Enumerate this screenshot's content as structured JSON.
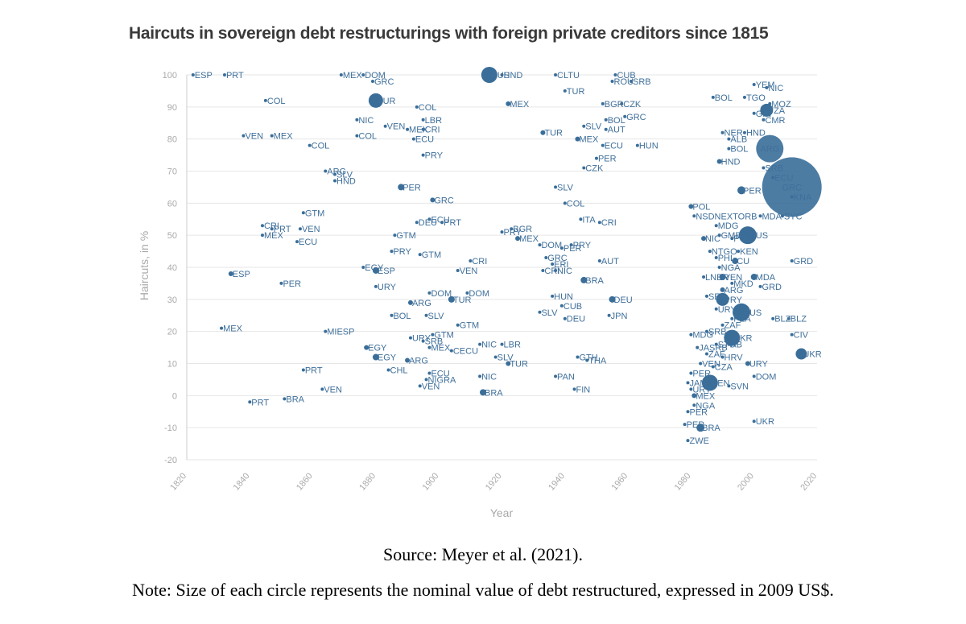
{
  "title": "Haircuts in sovereign debt restructurings with foreign private creditors since 1815",
  "source": "Source: Meyer et al. (2021).",
  "note": "Note: Size of each circle represents the nominal value of debt restructured, expressed in 2009 US$.",
  "colors": {
    "marker": "#3a6e99",
    "label": "#3f6f9a",
    "grid": "#e6e6e6",
    "axis_text": "#aaaaaa"
  },
  "chart_data": {
    "type": "scatter",
    "title": "Haircuts in sovereign debt restructurings with foreign private creditors since 1815",
    "xlabel": "Year",
    "ylabel": "Haircuts, in %",
    "xlim": [
      1820,
      2020
    ],
    "ylim": [
      -20,
      100
    ],
    "x_ticks": [
      1820,
      1840,
      1860,
      1880,
      1900,
      1920,
      1940,
      1960,
      1980,
      2000,
      2020
    ],
    "y_ticks": [
      100,
      90,
      80,
      70,
      60,
      50,
      40,
      30,
      20,
      10,
      0,
      -10,
      -20
    ],
    "grid": "horizontal",
    "marker_size_meaning": "nominal value of debt restructured (2009 US$)",
    "points": [
      {
        "label": "ESP",
        "x": 1822,
        "y": 100,
        "r": 2
      },
      {
        "label": "PRT",
        "x": 1832,
        "y": 100,
        "r": 2
      },
      {
        "label": "COL",
        "x": 1845,
        "y": 92,
        "r": 2
      },
      {
        "label": "VEN",
        "x": 1838,
        "y": 81,
        "r": 2
      },
      {
        "label": "MEX",
        "x": 1847,
        "y": 81,
        "r": 2
      },
      {
        "label": "CRI",
        "x": 1844,
        "y": 53,
        "r": 2
      },
      {
        "label": "PRT",
        "x": 1847,
        "y": 52,
        "r": 2
      },
      {
        "label": "MEX",
        "x": 1844,
        "y": 50,
        "r": 2
      },
      {
        "label": "ESP",
        "x": 1834,
        "y": 38,
        "r": 3
      },
      {
        "label": "PER",
        "x": 1850,
        "y": 35,
        "r": 2
      },
      {
        "label": "MEX",
        "x": 1831,
        "y": 21,
        "r": 2
      },
      {
        "label": "PRT",
        "x": 1840,
        "y": -2,
        "r": 2
      },
      {
        "label": "BRA",
        "x": 1851,
        "y": -1,
        "r": 2
      },
      {
        "label": "MEX",
        "x": 1869,
        "y": 100,
        "r": 2
      },
      {
        "label": "DOM",
        "x": 1876,
        "y": 100,
        "r": 2
      },
      {
        "label": "GRC",
        "x": 1879,
        "y": 98,
        "r": 2
      },
      {
        "label": "TUR",
        "x": 1880,
        "y": 92,
        "r": 9
      },
      {
        "label": "NIC",
        "x": 1874,
        "y": 86,
        "r": 2
      },
      {
        "label": "VEN",
        "x": 1883,
        "y": 84,
        "r": 2
      },
      {
        "label": "MEX",
        "x": 1890,
        "y": 83,
        "r": 2
      },
      {
        "label": "COL",
        "x": 1874,
        "y": 81,
        "r": 2
      },
      {
        "label": "ECU",
        "x": 1892,
        "y": 80,
        "r": 2
      },
      {
        "label": "COL",
        "x": 1859,
        "y": 78,
        "r": 2
      },
      {
        "label": "ARG",
        "x": 1864,
        "y": 70,
        "r": 2
      },
      {
        "label": "SLV",
        "x": 1867,
        "y": 69,
        "r": 2
      },
      {
        "label": "HND",
        "x": 1867,
        "y": 67,
        "r": 2
      },
      {
        "label": "GTM",
        "x": 1857,
        "y": 57,
        "r": 2
      },
      {
        "label": "VEN",
        "x": 1856,
        "y": 52,
        "r": 2
      },
      {
        "label": "ECU",
        "x": 1855,
        "y": 48,
        "r": 2
      },
      {
        "label": "EGY",
        "x": 1876,
        "y": 40,
        "r": 2
      },
      {
        "label": "ESP",
        "x": 1880,
        "y": 39,
        "r": 4
      },
      {
        "label": "URY",
        "x": 1880,
        "y": 34,
        "r": 2
      },
      {
        "label": "MIESP",
        "x": 1864,
        "y": 20,
        "r": 2
      },
      {
        "label": "EGY",
        "x": 1877,
        "y": 15,
        "r": 3
      },
      {
        "label": "EGY",
        "x": 1880,
        "y": 12,
        "r": 4
      },
      {
        "label": "PRT",
        "x": 1857,
        "y": 8,
        "r": 2
      },
      {
        "label": "VEN",
        "x": 1863,
        "y": 2,
        "r": 2
      },
      {
        "label": "CHL",
        "x": 1884,
        "y": 8,
        "r": 2
      },
      {
        "label": "COL",
        "x": 1893,
        "y": 90,
        "r": 2
      },
      {
        "label": "LBR",
        "x": 1895,
        "y": 86,
        "r": 2
      },
      {
        "label": "CRI",
        "x": 1895,
        "y": 83,
        "r": 2
      },
      {
        "label": "PRY",
        "x": 1895,
        "y": 75,
        "r": 2
      },
      {
        "label": "PER",
        "x": 1888,
        "y": 65,
        "r": 4
      },
      {
        "label": "GRC",
        "x": 1898,
        "y": 61,
        "r": 3
      },
      {
        "label": "DEU",
        "x": 1893,
        "y": 54,
        "r": 2
      },
      {
        "label": "ECU",
        "x": 1897,
        "y": 55,
        "r": 2
      },
      {
        "label": "PRT",
        "x": 1901,
        "y": 54,
        "r": 2
      },
      {
        "label": "GTM",
        "x": 1886,
        "y": 50,
        "r": 2
      },
      {
        "label": "PRY",
        "x": 1885,
        "y": 45,
        "r": 2
      },
      {
        "label": "GTM",
        "x": 1894,
        "y": 44,
        "r": 2
      },
      {
        "label": "CRI",
        "x": 1910,
        "y": 42,
        "r": 2
      },
      {
        "label": "VEN",
        "x": 1906,
        "y": 39,
        "r": 2
      },
      {
        "label": "DOM",
        "x": 1897,
        "y": 32,
        "r": 2
      },
      {
        "label": "DOM",
        "x": 1909,
        "y": 32,
        "r": 2
      },
      {
        "label": "TUR",
        "x": 1904,
        "y": 30,
        "r": 4
      },
      {
        "label": "ARG",
        "x": 1891,
        "y": 29,
        "r": 3
      },
      {
        "label": "BOL",
        "x": 1885,
        "y": 25,
        "r": 2
      },
      {
        "label": "SLV",
        "x": 1896,
        "y": 25,
        "r": 2
      },
      {
        "label": "GTM",
        "x": 1906,
        "y": 22,
        "r": 2
      },
      {
        "label": "URY",
        "x": 1891,
        "y": 18,
        "r": 2
      },
      {
        "label": "SRB",
        "x": 1895,
        "y": 17,
        "r": 2
      },
      {
        "label": "GTM",
        "x": 1898,
        "y": 19,
        "r": 2
      },
      {
        "label": "MEX",
        "x": 1897,
        "y": 15,
        "r": 2
      },
      {
        "label": "CECU",
        "x": 1904,
        "y": 14,
        "r": 2
      },
      {
        "label": "NIC",
        "x": 1913,
        "y": 16,
        "r": 2
      },
      {
        "label": "LBR",
        "x": 1920,
        "y": 16,
        "r": 2
      },
      {
        "label": "ARG",
        "x": 1890,
        "y": 11,
        "r": 3
      },
      {
        "label": "SLV",
        "x": 1918,
        "y": 12,
        "r": 2
      },
      {
        "label": "TUR",
        "x": 1922,
        "y": 10,
        "r": 3
      },
      {
        "label": "ECU",
        "x": 1897,
        "y": 7,
        "r": 2
      },
      {
        "label": "NIC",
        "x": 1913,
        "y": 6,
        "r": 2
      },
      {
        "label": "NIGRA",
        "x": 1896,
        "y": 5,
        "r": 2
      },
      {
        "label": "VEN",
        "x": 1894,
        "y": 3,
        "r": 2
      },
      {
        "label": "BRA",
        "x": 1914,
        "y": 1,
        "r": 4
      },
      {
        "label": "RUS",
        "x": 1916,
        "y": 100,
        "r": 10
      },
      {
        "label": "HND",
        "x": 1920,
        "y": 100,
        "r": 2
      },
      {
        "label": "MEX",
        "x": 1922,
        "y": 91,
        "r": 3
      },
      {
        "label": "PRY",
        "x": 1920,
        "y": 51,
        "r": 2
      },
      {
        "label": "BGR",
        "x": 1923,
        "y": 52,
        "r": 2
      },
      {
        "label": "MEX",
        "x": 1925,
        "y": 49,
        "r": 3
      },
      {
        "label": "CLTU",
        "x": 1937,
        "y": 100,
        "r": 2
      },
      {
        "label": "TUR",
        "x": 1940,
        "y": 95,
        "r": 2
      },
      {
        "label": "CUB",
        "x": 1956,
        "y": 100,
        "r": 2
      },
      {
        "label": "ROU",
        "x": 1955,
        "y": 98,
        "r": 2
      },
      {
        "label": "SRB",
        "x": 1961,
        "y": 98,
        "r": 2
      },
      {
        "label": "BGR",
        "x": 1952,
        "y": 91,
        "r": 2
      },
      {
        "label": "CZK",
        "x": 1958,
        "y": 91,
        "r": 2
      },
      {
        "label": "BOL",
        "x": 1953,
        "y": 86,
        "r": 2
      },
      {
        "label": "GRC",
        "x": 1959,
        "y": 87,
        "r": 2
      },
      {
        "label": "AUT",
        "x": 1953,
        "y": 83,
        "r": 2
      },
      {
        "label": "SLV",
        "x": 1946,
        "y": 84,
        "r": 2
      },
      {
        "label": "TUR",
        "x": 1933,
        "y": 82,
        "r": 3
      },
      {
        "label": "MEX",
        "x": 1944,
        "y": 80,
        "r": 3
      },
      {
        "label": "ECU",
        "x": 1952,
        "y": 78,
        "r": 2
      },
      {
        "label": "HUN",
        "x": 1963,
        "y": 78,
        "r": 2
      },
      {
        "label": "PER",
        "x": 1950,
        "y": 74,
        "r": 2
      },
      {
        "label": "CZK",
        "x": 1946,
        "y": 71,
        "r": 2
      },
      {
        "label": "SLV",
        "x": 1937,
        "y": 65,
        "r": 2
      },
      {
        "label": "COL",
        "x": 1940,
        "y": 60,
        "r": 2
      },
      {
        "label": "ITA",
        "x": 1945,
        "y": 55,
        "r": 2
      },
      {
        "label": "CRI",
        "x": 1951,
        "y": 54,
        "r": 2
      },
      {
        "label": "DOM",
        "x": 1932,
        "y": 47,
        "r": 2
      },
      {
        "label": "PER",
        "x": 1939,
        "y": 46,
        "r": 2
      },
      {
        "label": "PRY",
        "x": 1942,
        "y": 47,
        "r": 2
      },
      {
        "label": "GRC",
        "x": 1934,
        "y": 43,
        "r": 2
      },
      {
        "label": "ERI",
        "x": 1936,
        "y": 41,
        "r": 2
      },
      {
        "label": "CRI",
        "x": 1933,
        "y": 39,
        "r": 2
      },
      {
        "label": "NIC",
        "x": 1937,
        "y": 39,
        "r": 2
      },
      {
        "label": "AUT",
        "x": 1951,
        "y": 42,
        "r": 2
      },
      {
        "label": "BRA",
        "x": 1946,
        "y": 36,
        "r": 4
      },
      {
        "label": "HUN",
        "x": 1936,
        "y": 31,
        "r": 2
      },
      {
        "label": "CUB",
        "x": 1939,
        "y": 28,
        "r": 2
      },
      {
        "label": "SLV",
        "x": 1932,
        "y": 26,
        "r": 2
      },
      {
        "label": "DEU",
        "x": 1940,
        "y": 24,
        "r": 2
      },
      {
        "label": "DEU",
        "x": 1955,
        "y": 30,
        "r": 4
      },
      {
        "label": "JPN",
        "x": 1954,
        "y": 25,
        "r": 2
      },
      {
        "label": "GTH",
        "x": 1944,
        "y": 12,
        "r": 2
      },
      {
        "label": "THA",
        "x": 1947,
        "y": 11,
        "r": 2
      },
      {
        "label": "PAN",
        "x": 1937,
        "y": 6,
        "r": 2
      },
      {
        "label": "FIN",
        "x": 1943,
        "y": 2,
        "r": 2
      },
      {
        "label": "POL",
        "x": 1980,
        "y": 59,
        "r": 3
      },
      {
        "label": "NSDNEXTORB",
        "x": 1981,
        "y": 56,
        "r": 2
      },
      {
        "label": "MDG",
        "x": 1988,
        "y": 53,
        "r": 2
      },
      {
        "label": "NIC",
        "x": 1984,
        "y": 49,
        "r": 3
      },
      {
        "label": "GMB",
        "x": 1989,
        "y": 50,
        "r": 2
      },
      {
        "label": "POL",
        "x": 1993,
        "y": 49,
        "r": 2
      },
      {
        "label": "RUS",
        "x": 1998,
        "y": 50,
        "r": 11
      },
      {
        "label": "NTGO",
        "x": 1986,
        "y": 45,
        "r": 2
      },
      {
        "label": "KEN",
        "x": 1995,
        "y": 45,
        "r": 2
      },
      {
        "label": "PHL",
        "x": 1988,
        "y": 43,
        "r": 2
      },
      {
        "label": "CU",
        "x": 1994,
        "y": 42,
        "r": 4
      },
      {
        "label": "NGA",
        "x": 1989,
        "y": 40,
        "r": 2
      },
      {
        "label": "LNER",
        "x": 1984,
        "y": 37,
        "r": 2
      },
      {
        "label": "VEN",
        "x": 1990,
        "y": 37,
        "r": 4
      },
      {
        "label": "MDA",
        "x": 2000,
        "y": 37,
        "r": 4
      },
      {
        "label": "MKD",
        "x": 1993,
        "y": 35,
        "r": 2
      },
      {
        "label": "GRD",
        "x": 2002,
        "y": 34,
        "r": 2
      },
      {
        "label": "ARG",
        "x": 1990,
        "y": 33,
        "r": 3
      },
      {
        "label": "SEN",
        "x": 1985,
        "y": 31,
        "r": 2
      },
      {
        "label": "PRY",
        "x": 1990,
        "y": 30,
        "r": 8
      },
      {
        "label": "URY",
        "x": 1988,
        "y": 27,
        "r": 2
      },
      {
        "label": "RUS",
        "x": 1996,
        "y": 26,
        "r": 11
      },
      {
        "label": "PZA",
        "x": 1993,
        "y": 24,
        "r": 2
      },
      {
        "label": "ZAF",
        "x": 1990,
        "y": 22,
        "r": 2
      },
      {
        "label": "SRB",
        "x": 1985,
        "y": 20,
        "r": 2
      },
      {
        "label": "MDG",
        "x": 1980,
        "y": 19,
        "r": 2
      },
      {
        "label": "UKR",
        "x": 1993,
        "y": 18,
        "r": 10
      },
      {
        "label": "STO",
        "x": 1988,
        "y": 16,
        "r": 2
      },
      {
        "label": "AB",
        "x": 1992,
        "y": 16,
        "r": 2
      },
      {
        "label": "JASRB",
        "x": 1982,
        "y": 15,
        "r": 2
      },
      {
        "label": "ZAF",
        "x": 1985,
        "y": 13,
        "r": 2
      },
      {
        "label": "HRV",
        "x": 1990,
        "y": 12,
        "r": 2
      },
      {
        "label": "URY",
        "x": 1998,
        "y": 10,
        "r": 3
      },
      {
        "label": "VEN",
        "x": 1983,
        "y": 10,
        "r": 2
      },
      {
        "label": "CZA",
        "x": 1987,
        "y": 9,
        "r": 2
      },
      {
        "label": "DOM",
        "x": 2000,
        "y": 6,
        "r": 2
      },
      {
        "label": "PER",
        "x": 1980,
        "y": 7,
        "r": 2
      },
      {
        "label": "JAM",
        "x": 1979,
        "y": 4,
        "r": 2
      },
      {
        "label": "VEN",
        "x": 1986,
        "y": 4,
        "r": 10
      },
      {
        "label": "SVN",
        "x": 1992,
        "y": 3,
        "r": 2
      },
      {
        "label": "URY",
        "x": 1980,
        "y": 2,
        "r": 2
      },
      {
        "label": "MEX",
        "x": 1981,
        "y": 0,
        "r": 3
      },
      {
        "label": "NGA",
        "x": 1981,
        "y": -3,
        "r": 2
      },
      {
        "label": "PER",
        "x": 1979,
        "y": -5,
        "r": 2
      },
      {
        "label": "PER",
        "x": 1978,
        "y": -9,
        "r": 2
      },
      {
        "label": "BRA",
        "x": 1983,
        "y": -10,
        "r": 5
      },
      {
        "label": "ZWE",
        "x": 1979,
        "y": -14,
        "r": 2
      },
      {
        "label": "UKR",
        "x": 2000,
        "y": -8,
        "r": 2
      },
      {
        "label": "BOL",
        "x": 1987,
        "y": 93,
        "r": 2
      },
      {
        "label": "TGO",
        "x": 1997,
        "y": 93,
        "r": 2
      },
      {
        "label": "MOZ",
        "x": 2005,
        "y": 91,
        "r": 2
      },
      {
        "label": "YEM",
        "x": 2000,
        "y": 97,
        "r": 2
      },
      {
        "label": "NIC",
        "x": 2004,
        "y": 96,
        "r": 2
      },
      {
        "label": "GIN",
        "x": 2000,
        "y": 88,
        "r": 2
      },
      {
        "label": "CMR",
        "x": 2003,
        "y": 86,
        "r": 2
      },
      {
        "label": "TZA",
        "x": 2004,
        "y": 89,
        "r": 8
      },
      {
        "label": "NER",
        "x": 1990,
        "y": 82,
        "r": 2
      },
      {
        "label": "HND",
        "x": 1997,
        "y": 82,
        "r": 2
      },
      {
        "label": "ALB",
        "x": 1992,
        "y": 80,
        "r": 2
      },
      {
        "label": "BOL",
        "x": 1992,
        "y": 77,
        "r": 2
      },
      {
        "label": "ARG",
        "x": 2005,
        "y": 77,
        "r": 17
      },
      {
        "label": "HND",
        "x": 1989,
        "y": 73,
        "r": 3
      },
      {
        "label": "SRB",
        "x": 2003,
        "y": 71,
        "r": 2
      },
      {
        "label": "PER",
        "x": 1996,
        "y": 64,
        "r": 5
      },
      {
        "label": "ECU",
        "x": 2006,
        "y": 68,
        "r": 2
      },
      {
        "label": "MDA",
        "x": 2002,
        "y": 56,
        "r": 2
      },
      {
        "label": "SYC",
        "x": 2009,
        "y": 56,
        "r": 2
      },
      {
        "label": "GRD",
        "x": 2012,
        "y": 42,
        "r": 2
      },
      {
        "label": "BLZ",
        "x": 2006,
        "y": 24,
        "r": 2
      },
      {
        "label": "BLZ",
        "x": 2011,
        "y": 24,
        "r": 2
      },
      {
        "label": "CIV",
        "x": 2012,
        "y": 19,
        "r": 2
      },
      {
        "label": "UKR",
        "x": 2015,
        "y": 13,
        "r": 7
      },
      {
        "label": "GRC",
        "x": 2012,
        "y": 65,
        "r": 37
      },
      {
        "label": "KNA",
        "x": 2012,
        "y": 62,
        "r": 2
      }
    ]
  }
}
